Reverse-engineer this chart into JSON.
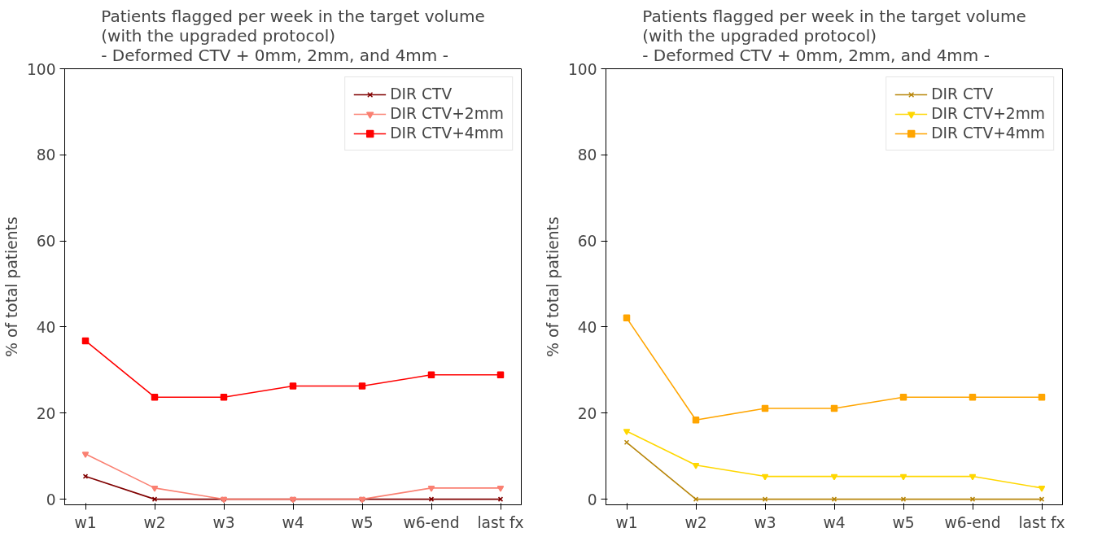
{
  "chart_data": [
    {
      "type": "line",
      "title": "Patients flagged per week in the target volume\n(with the upgraded protocol)\n- Deformed CTV + 0mm, 2mm, and 4mm -",
      "ylabel": "% of total patients",
      "categories": [
        "w1",
        "w2",
        "w3",
        "w4",
        "w5",
        "w6-end",
        "last fx"
      ],
      "ylim": [
        -1.3,
        100
      ],
      "yticks": [
        0,
        20,
        40,
        60,
        80,
        100
      ],
      "grid": false,
      "legend": "top right",
      "line_style": "solid",
      "series": [
        {
          "name": "DIR CTV",
          "color": "#800000",
          "marker": "cross",
          "values": [
            5.3,
            0,
            0,
            0,
            0,
            0,
            0
          ]
        },
        {
          "name": "DIR CTV+2mm",
          "color": "#fa8072",
          "marker": "triangle",
          "values": [
            10.5,
            2.6,
            0,
            0,
            0,
            2.6,
            2.6
          ]
        },
        {
          "name": "DIR CTV+4mm",
          "color": "#ff0000",
          "marker": "square",
          "values": [
            36.8,
            23.7,
            23.7,
            26.3,
            26.3,
            28.9,
            28.9
          ]
        }
      ]
    },
    {
      "type": "line",
      "title": "Patients flagged per week in the target volume\n(with the upgraded protocol)\n- Deformed CTV + 0mm, 2mm, and 4mm -",
      "ylabel": "% of total patients",
      "categories": [
        "w1",
        "w2",
        "w3",
        "w4",
        "w5",
        "w6-end",
        "last fx"
      ],
      "ylim": [
        -1.3,
        100
      ],
      "yticks": [
        0,
        20,
        40,
        60,
        80,
        100
      ],
      "grid": false,
      "legend": "top right",
      "line_style": "solid",
      "series": [
        {
          "name": "DIR CTV",
          "color": "#b8860b",
          "marker": "cross",
          "values": [
            13.2,
            0,
            0,
            0,
            0,
            0,
            0
          ]
        },
        {
          "name": "DIR CTV+2mm",
          "color": "#ffd700",
          "marker": "triangle",
          "values": [
            15.8,
            7.9,
            5.3,
            5.3,
            5.3,
            5.3,
            2.6
          ]
        },
        {
          "name": "DIR CTV+4mm",
          "color": "#ffa500",
          "marker": "square",
          "values": [
            42.1,
            18.4,
            21.1,
            21.1,
            23.7,
            23.7,
            23.7
          ]
        }
      ]
    }
  ]
}
